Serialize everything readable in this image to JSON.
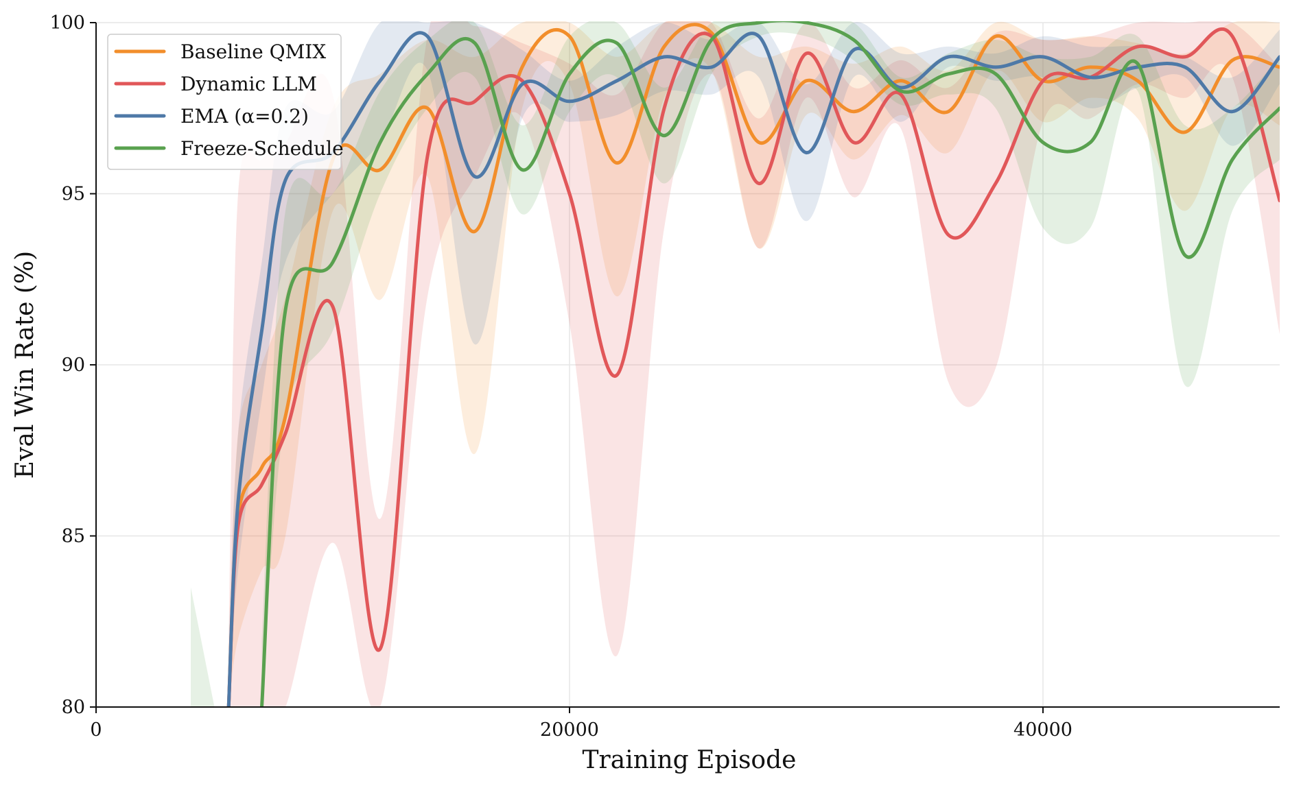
{
  "chart_data": {
    "type": "line",
    "title": "",
    "xlabel": "Training Episode",
    "ylabel": "Eval Win Rate (%)",
    "xlim": [
      0,
      50000
    ],
    "ylim": [
      80,
      100
    ],
    "xticks": [
      0,
      20000,
      40000
    ],
    "yticks": [
      80,
      85,
      90,
      95,
      100
    ],
    "grid": true,
    "legend_position": "top-left",
    "x": [
      0,
      2000,
      4000,
      5000,
      5600,
      6000,
      7000,
      8000,
      10000,
      12000,
      14000,
      16000,
      18000,
      20000,
      22000,
      24000,
      26000,
      28000,
      30000,
      32000,
      34000,
      36000,
      38000,
      40000,
      42000,
      44000,
      46000,
      48000,
      50000
    ],
    "series": [
      {
        "name": "Baseline QMIX",
        "color": "#f28e2b",
        "values": [
          null,
          null,
          null,
          null,
          80.0,
          85.6,
          87.0,
          88.5,
          96.0,
          95.7,
          97.5,
          93.9,
          98.7,
          99.6,
          95.9,
          99.3,
          99.7,
          96.5,
          98.3,
          97.4,
          98.3,
          97.4,
          99.6,
          98.3,
          98.7,
          98.3,
          96.8,
          98.9,
          98.7
        ],
        "lower": [
          null,
          null,
          null,
          null,
          79.0,
          82.0,
          84.0,
          85.0,
          94.5,
          91.9,
          95.5,
          87.4,
          97.5,
          98.2,
          92.0,
          97.8,
          98.6,
          93.4,
          97.3,
          96.0,
          97.3,
          96.2,
          98.6,
          97.1,
          97.8,
          97.2,
          94.5,
          97.5,
          97.0
        ],
        "upper": [
          null,
          null,
          null,
          null,
          81.0,
          88.0,
          90.0,
          92.0,
          97.5,
          98.5,
          99.5,
          99.0,
          100.0,
          100.0,
          99.0,
          100.0,
          100.0,
          99.0,
          99.3,
          98.8,
          99.3,
          98.6,
          100.0,
          99.5,
          99.6,
          99.4,
          99.1,
          100.0,
          100.0
        ]
      },
      {
        "name": "Dynamic LLM",
        "color": "#e15759",
        "values": [
          null,
          null,
          null,
          null,
          80.0,
          85.3,
          86.5,
          88.0,
          91.7,
          81.7,
          96.1,
          97.7,
          98.3,
          95.0,
          89.7,
          97.5,
          99.6,
          95.3,
          99.1,
          96.5,
          97.9,
          93.8,
          95.3,
          98.3,
          98.4,
          99.3,
          99.0,
          99.6,
          94.8
        ],
        "lower": [
          null,
          null,
          null,
          null,
          78.0,
          80.0,
          79.0,
          80.0,
          84.8,
          78.0,
          92.0,
          95.5,
          97.2,
          91.2,
          81.5,
          94.0,
          98.5,
          93.4,
          97.8,
          94.9,
          96.9,
          89.5,
          89.9,
          97.1,
          97.2,
          98.2,
          97.8,
          98.4,
          90.9
        ],
        "upper": [
          null,
          null,
          null,
          null,
          82.0,
          95.0,
          96.0,
          96.5,
          97.9,
          85.5,
          99.6,
          99.9,
          99.4,
          98.8,
          97.9,
          100.0,
          100.0,
          97.2,
          100.0,
          98.1,
          98.9,
          98.1,
          99.7,
          99.5,
          99.6,
          100.0,
          100.0,
          100.0,
          98.7
        ]
      },
      {
        "name": "EMA (α=0.2)",
        "color": "#4e79a7",
        "values": [
          null,
          null,
          null,
          null,
          80.0,
          86.0,
          91.0,
          95.4,
          96.2,
          98.3,
          99.6,
          95.5,
          98.2,
          97.7,
          98.3,
          99.0,
          98.7,
          99.6,
          96.2,
          99.2,
          98.1,
          99.0,
          98.7,
          99.0,
          98.4,
          98.7,
          98.7,
          97.4,
          99.0
        ],
        "lower": [
          null,
          null,
          null,
          null,
          78.5,
          84.0,
          89.0,
          93.0,
          95.0,
          96.5,
          98.6,
          90.6,
          97.2,
          97.1,
          97.3,
          98.0,
          97.9,
          98.4,
          94.2,
          98.4,
          97.1,
          98.7,
          98.3,
          98.4,
          97.5,
          98.1,
          98.4,
          96.4,
          98.2
        ],
        "upper": [
          null,
          null,
          null,
          null,
          81.5,
          88.0,
          93.0,
          97.5,
          97.4,
          100.0,
          100.0,
          100.0,
          99.2,
          98.3,
          99.3,
          100.0,
          99.5,
          100.0,
          98.2,
          100.0,
          99.1,
          99.3,
          99.1,
          99.6,
          99.3,
          99.3,
          99.0,
          98.4,
          99.8
        ]
      },
      {
        "name": "Freeze-Schedule",
        "color": "#59a14f",
        "values": [
          null,
          null,
          null,
          null,
          null,
          null,
          80.0,
          91.6,
          93.0,
          96.5,
          98.5,
          99.4,
          95.7,
          98.5,
          99.4,
          96.7,
          99.5,
          100.0,
          100.0,
          99.5,
          98.0,
          98.5,
          98.5,
          96.5,
          96.5,
          98.8,
          93.2,
          96.0,
          97.5
        ],
        "lower": [
          null,
          null,
          null,
          null,
          null,
          null,
          78.0,
          88.5,
          91.0,
          95.0,
          97.5,
          98.4,
          94.4,
          97.4,
          98.4,
          95.3,
          98.5,
          99.6,
          99.6,
          98.9,
          97.6,
          97.9,
          97.5,
          94.0,
          94.0,
          98.0,
          89.4,
          94.5,
          96.0
        ],
        "upper": [
          null,
          null,
          null,
          null,
          null,
          null,
          82.0,
          94.5,
          95.0,
          98.0,
          99.5,
          100.0,
          97.0,
          99.6,
          100.0,
          98.1,
          100.0,
          100.0,
          100.0,
          100.0,
          98.4,
          99.1,
          99.5,
          99.0,
          99.0,
          99.6,
          97.0,
          97.5,
          99.0
        ]
      }
    ],
    "faint_band": {
      "color": "#59a14f",
      "x": [
        4000,
        5000
      ],
      "lower": [
        80.0,
        80.0
      ],
      "upper": [
        83.5,
        80.0
      ]
    }
  }
}
